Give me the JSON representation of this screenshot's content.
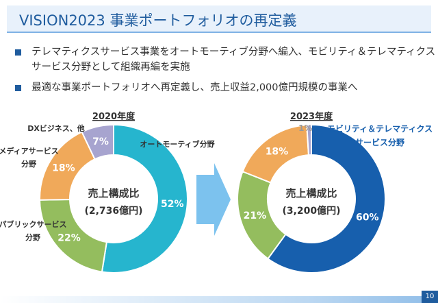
{
  "title": "VISION2023 事業ポートフォリオの再定義",
  "bullets": [
    "テレマティクスサービス事業をオートモーティブ分野へ編入、モビリティ＆テレマティクス",
    "サービス分野として組織再編を実施",
    "最適な事業ポートフォリオへ再定義し、売上収益2,000億円規模の事業へ"
  ],
  "page_number": "10",
  "chart_data": [
    {
      "type": "pie",
      "title": "2020年度",
      "center_label": "売上構成比",
      "center_value": "(2,736億円)",
      "slices": [
        {
          "label": "オートモーティブ分野",
          "value": 52,
          "value_label": "52%",
          "color": "#26b5ce"
        },
        {
          "label": "パブリックサービス分野",
          "value": 22,
          "value_label": "22%",
          "color": "#94bd5e"
        },
        {
          "label": "メディアサービス分野",
          "value": 18,
          "value_label": "18%",
          "color": "#f0a95a"
        },
        {
          "label": "DXビジネス、他",
          "value": 7,
          "value_label": "7%",
          "color": "#a7a4cf"
        }
      ]
    },
    {
      "type": "pie",
      "title": "2023年度",
      "center_label": "売上構成比",
      "center_value": "(3,200億円)",
      "slices": [
        {
          "label": "モビリティ＆テレマティクスサービス分野",
          "value": 60,
          "value_label": "60%",
          "color": "#175fad"
        },
        {
          "label": "",
          "value": 21,
          "value_label": "21%",
          "color": "#94bd5e"
        },
        {
          "label": "",
          "value": 18,
          "value_label": "18%",
          "color": "#f0a95a"
        },
        {
          "label": "",
          "value": 1,
          "value_label": "1%",
          "color": "#a7a4cf"
        }
      ]
    }
  ],
  "outer_labels": {
    "automotive": "オートモーティブ分野",
    "media_line1": "メディアサービス",
    "media_line2": "分野",
    "public_line1": "パブリックサービス",
    "public_line2": "分野",
    "dx": "DXビジネス、他",
    "mobility_line1": "モビリティ＆テレマティクス",
    "mobility_line2": "サービス分野"
  },
  "colors": {
    "title_text": "#1f5c9e",
    "arrow": "#7cc2ee",
    "mobility_label": "#175fad"
  }
}
